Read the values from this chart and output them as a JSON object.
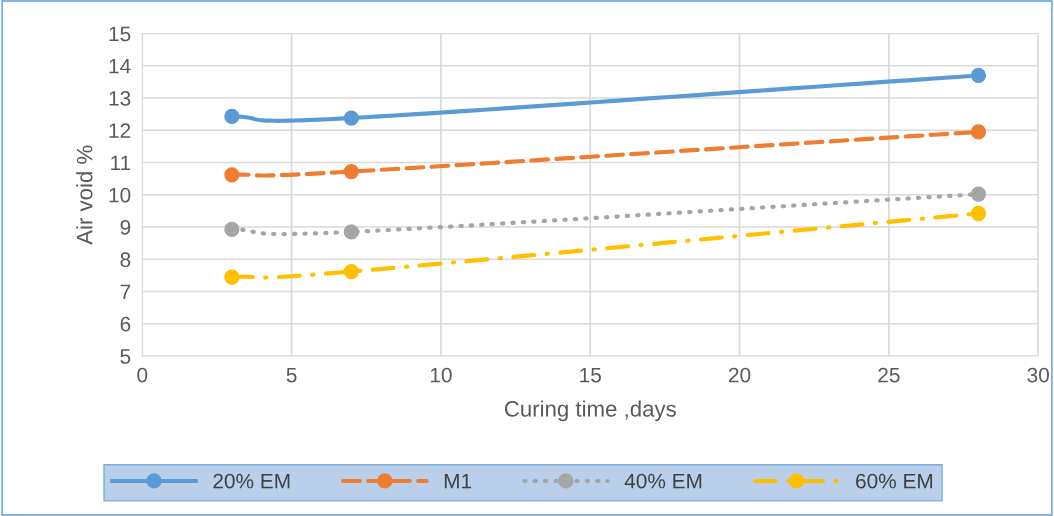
{
  "chart_data": {
    "type": "line",
    "xlabel": "Curing time ,days",
    "ylabel": "Air void %",
    "x": [
      3,
      7,
      28
    ],
    "series": [
      {
        "name": "20% EM",
        "color": "#5b9bd5",
        "values": [
          12.43,
          12.38,
          13.7
        ],
        "line_style": "solid"
      },
      {
        "name": "M1",
        "color": "#ed7d31",
        "values": [
          10.62,
          10.72,
          11.95
        ],
        "line_style": "dashed"
      },
      {
        "name": "40% EM",
        "color": "#a5a5a5",
        "values": [
          8.93,
          8.85,
          10.02
        ],
        "line_style": "dotted"
      },
      {
        "name": "60% EM",
        "color": "#ffc000",
        "values": [
          7.45,
          7.62,
          9.42
        ],
        "line_style": "dashdot"
      }
    ],
    "xlim": [
      0,
      30
    ],
    "xticks": [
      0,
      5,
      10,
      15,
      20,
      25,
      30
    ],
    "ylim": [
      5,
      15
    ],
    "yticks": [
      5,
      6,
      7,
      8,
      9,
      10,
      11,
      12,
      13,
      14,
      15
    ],
    "grid": true,
    "legend": "bottom",
    "marker": "circle"
  }
}
